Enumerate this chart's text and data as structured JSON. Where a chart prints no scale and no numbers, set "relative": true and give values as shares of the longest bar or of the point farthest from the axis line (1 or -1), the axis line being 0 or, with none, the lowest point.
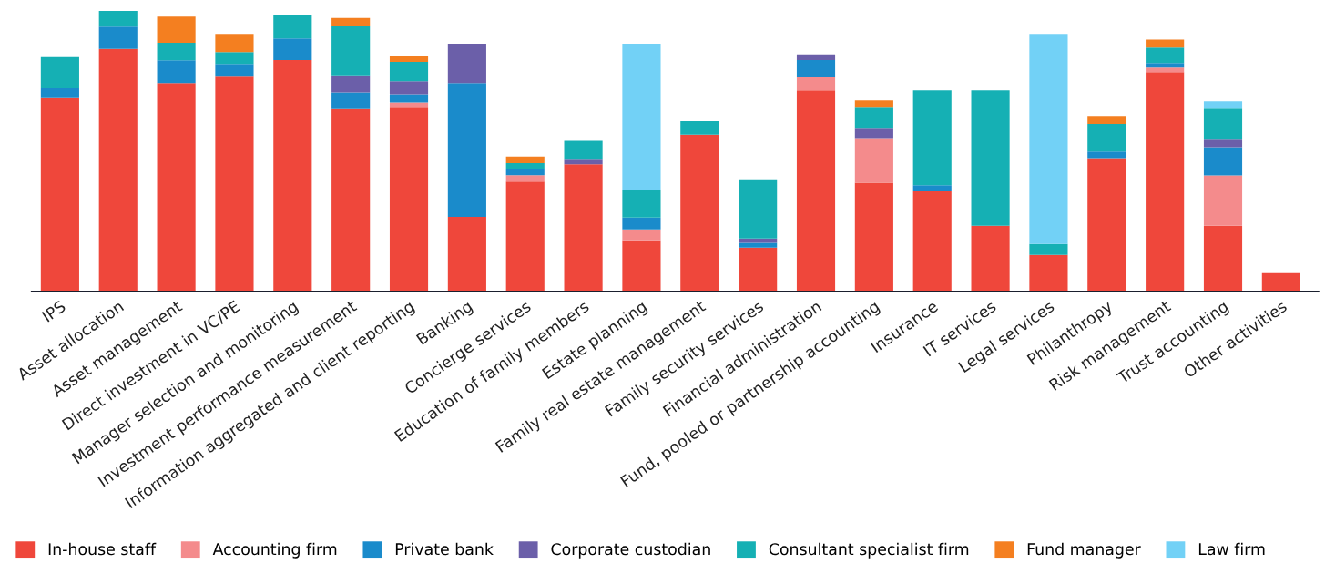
{
  "chart_data": {
    "type": "bar",
    "stacked": true,
    "relative": true,
    "legend": "bottom",
    "grid": false,
    "categories": [
      "IPS",
      "Asset allocation",
      "Asset management",
      "Direct investment in VC/PE",
      "Manager selection and monitoring",
      "Investment performance measurement",
      "Information aggregated and client reporting",
      "Banking",
      "Concierge services",
      "Education of family members",
      "Estate planning",
      "Family real estate management",
      "Family security services",
      "Financial administration",
      "Fund, pooled or partnership accounting",
      "Insurance",
      "IT services",
      "Legal services",
      "Philanthropy",
      "Risk management",
      "Trust accounting",
      "Other activities"
    ],
    "series": [
      {
        "name": "In-house staff",
        "color": "#ef473b",
        "values": [
          0.689,
          0.864,
          0.743,
          0.769,
          0.825,
          0.65,
          0.658,
          0.266,
          0.392,
          0.454,
          0.183,
          0.559,
          0.157,
          0.717,
          0.388,
          0.357,
          0.235,
          0.131,
          0.476,
          0.782,
          0.235,
          0.066
        ]
      },
      {
        "name": "Accounting firm",
        "color": "#f48b8c",
        "values": [
          null,
          null,
          null,
          null,
          null,
          null,
          0.016,
          null,
          0.023,
          null,
          0.039,
          null,
          null,
          0.049,
          0.156,
          null,
          null,
          null,
          null,
          0.016,
          0.179,
          null
        ]
      },
      {
        "name": "Private bank",
        "color": "#1a8bcb",
        "values": [
          0.035,
          0.08,
          0.081,
          0.042,
          0.077,
          0.059,
          0.029,
          0.477,
          0.023,
          null,
          0.042,
          null,
          0.017,
          0.059,
          null,
          0.022,
          null,
          null,
          0.023,
          0.016,
          0.101,
          null
        ]
      },
      {
        "name": "Corporate custodian",
        "color": "#6b5fa9",
        "values": [
          null,
          null,
          null,
          null,
          null,
          0.061,
          0.046,
          0.14,
          null,
          0.016,
          null,
          null,
          0.015,
          0.02,
          0.036,
          null,
          null,
          null,
          null,
          null,
          0.026,
          null
        ]
      },
      {
        "name": "Consultant specialist firm",
        "color": "#15b0b4",
        "values": [
          0.111,
          0.056,
          0.062,
          0.042,
          0.085,
          0.176,
          0.069,
          null,
          0.02,
          0.067,
          0.098,
          0.048,
          0.208,
          null,
          0.078,
          0.338,
          0.482,
          0.039,
          0.098,
          0.055,
          0.111,
          null
        ]
      },
      {
        "name": "Fund manager",
        "color": "#f47f20",
        "values": [
          null,
          null,
          0.094,
          0.065,
          null,
          0.029,
          0.022,
          null,
          0.023,
          null,
          null,
          null,
          null,
          null,
          0.023,
          null,
          null,
          null,
          0.029,
          0.029,
          null,
          null
        ]
      },
      {
        "name": "Law firm",
        "color": "#72d1f6",
        "values": [
          null,
          null,
          null,
          null,
          null,
          null,
          null,
          null,
          null,
          null,
          0.521,
          null,
          null,
          null,
          null,
          null,
          null,
          0.748,
          null,
          null,
          0.026,
          null
        ]
      }
    ]
  }
}
